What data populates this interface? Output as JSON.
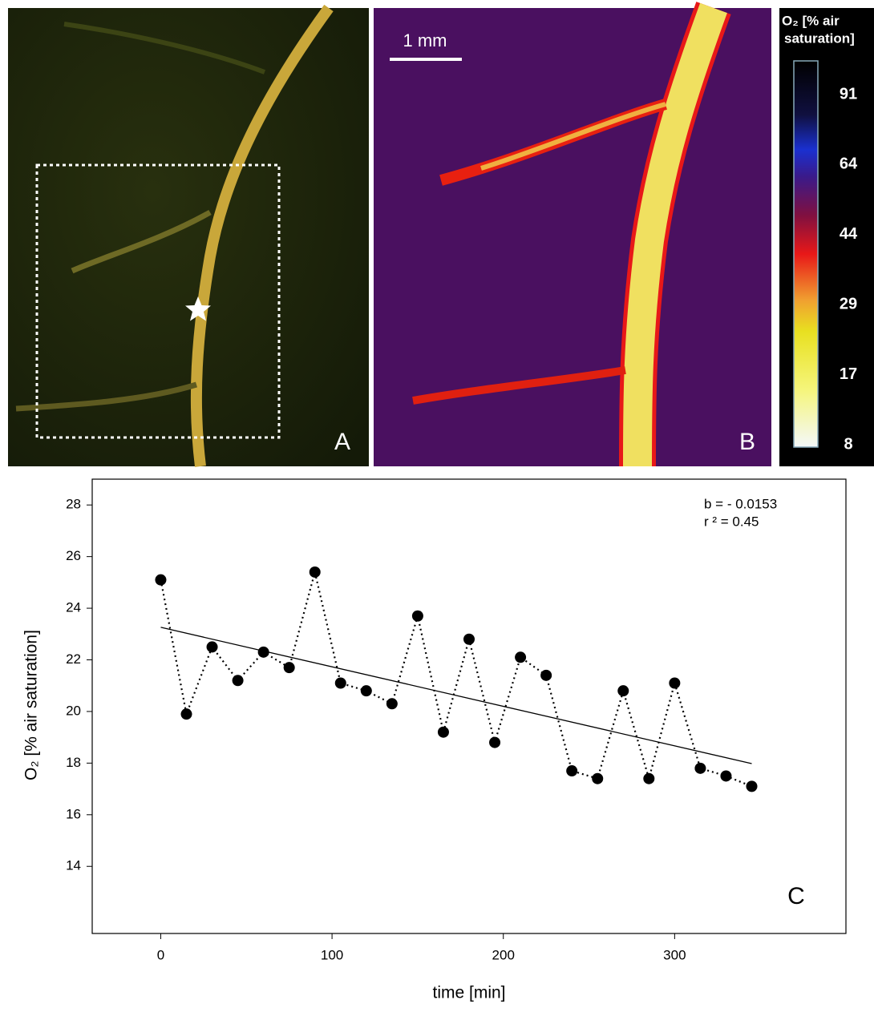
{
  "panels": {
    "a": {
      "label": "A"
    },
    "b": {
      "label": "B",
      "scale_bar": "1 mm"
    }
  },
  "colorbar": {
    "title": [
      "O₂ [% air",
      "saturation]"
    ],
    "ticks": [
      91,
      64,
      44,
      29,
      17,
      8
    ]
  },
  "chart_data": {
    "type": "scatter",
    "panel_label": "C",
    "x_label": "time [min]",
    "y_label": "O₂ [% air saturation]",
    "annotations": [
      "b = - 0.0153",
      "r ² = 0.45"
    ],
    "x": [
      0,
      15,
      30,
      45,
      60,
      75,
      90,
      105,
      120,
      135,
      150,
      165,
      180,
      195,
      210,
      225,
      240,
      255,
      270,
      285,
      300,
      315,
      330,
      345
    ],
    "values": [
      25.1,
      19.9,
      22.5,
      21.2,
      22.3,
      21.7,
      25.4,
      21.1,
      20.8,
      20.3,
      23.7,
      19.2,
      22.8,
      18.8,
      22.1,
      21.4,
      17.7,
      17.4,
      20.8,
      17.4,
      21.1,
      17.8,
      17.5,
      17.1
    ],
    "color": "#000000",
    "fit_line": {
      "x": [
        0,
        345
      ],
      "values": [
        23.26,
        17.98
      ]
    },
    "xlim": [
      -40,
      400
    ],
    "xticks": [
      0,
      100,
      200,
      300
    ],
    "ylim": [
      11.4,
      29
    ],
    "yticks": [
      14,
      16,
      18,
      20,
      22,
      24,
      26,
      28
    ]
  }
}
